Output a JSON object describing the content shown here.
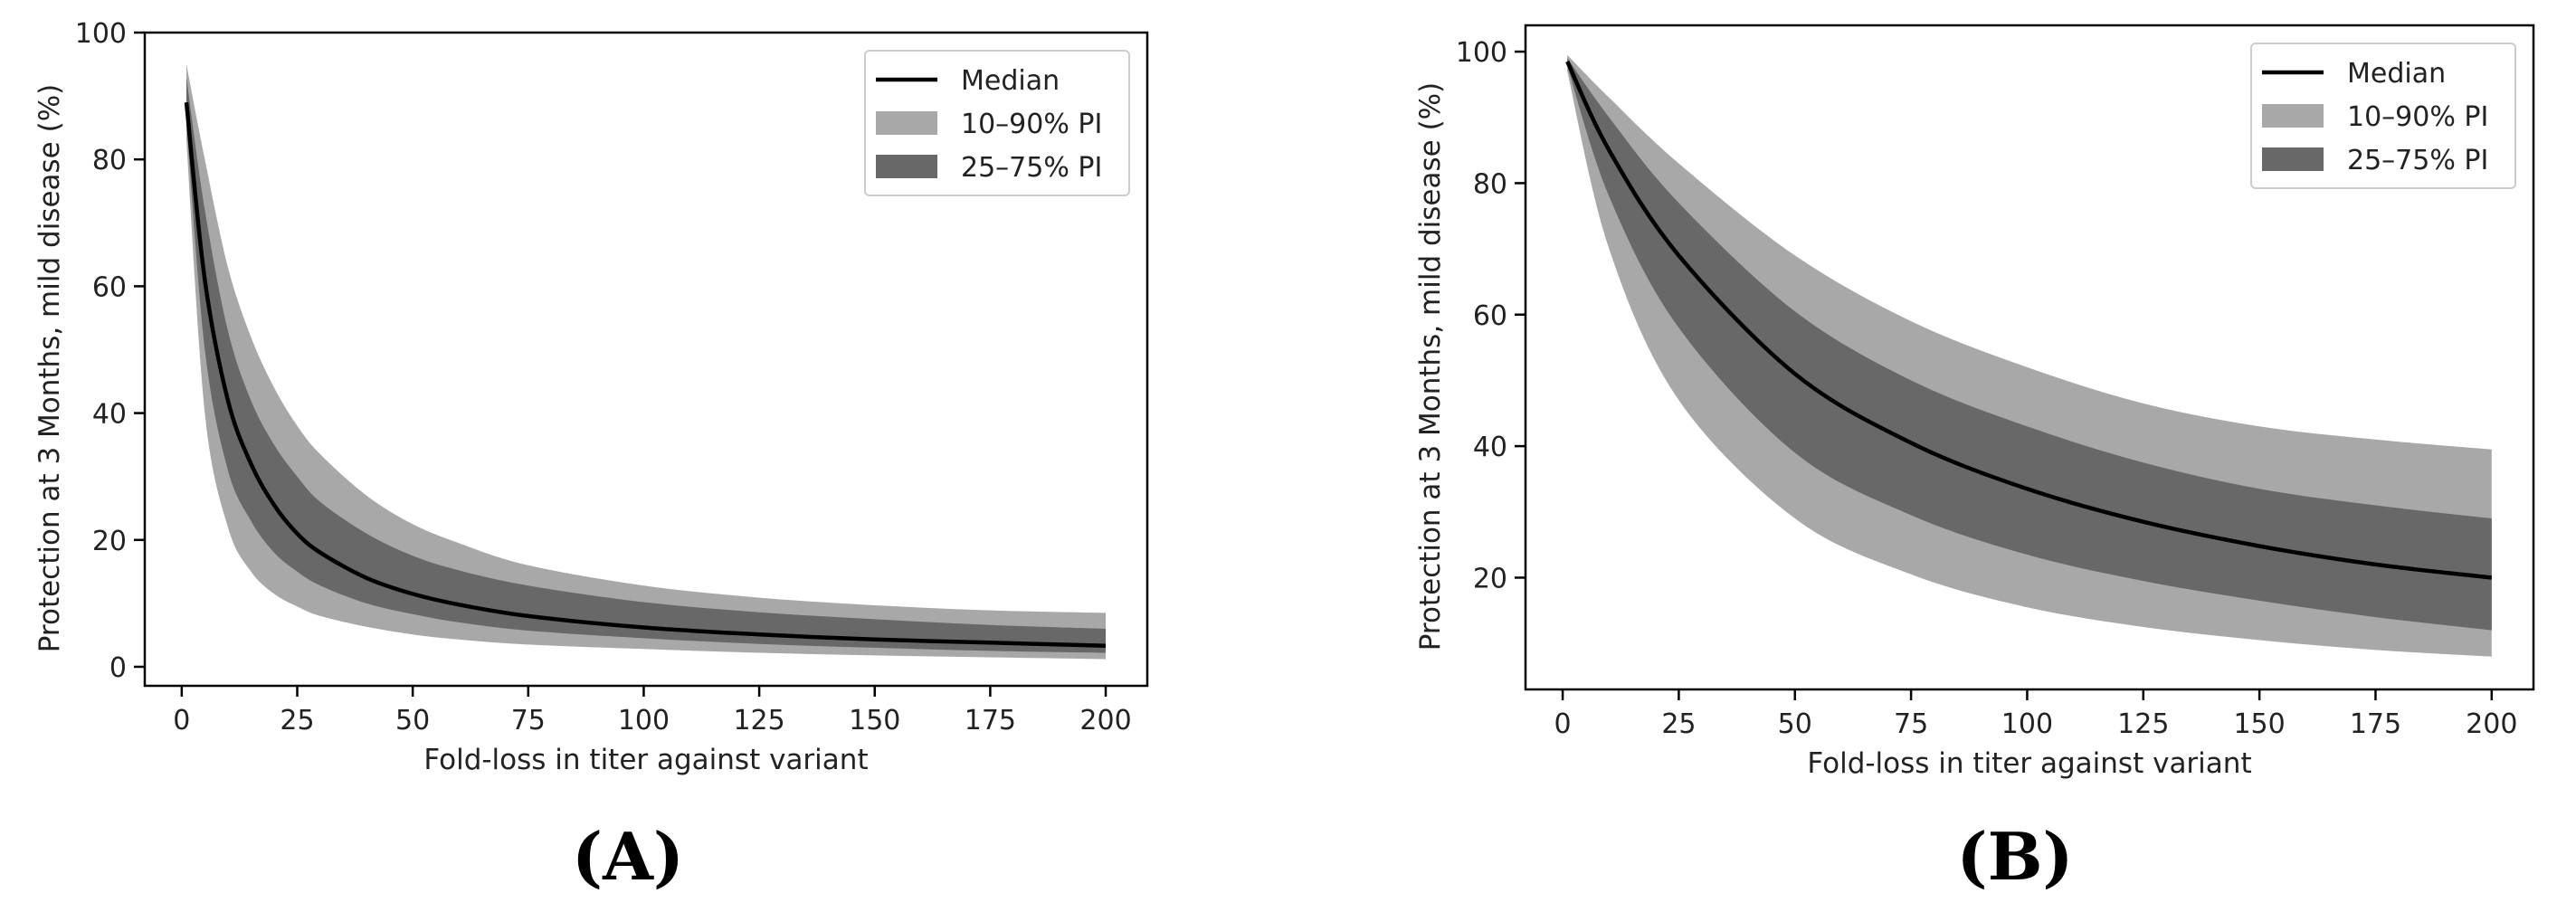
{
  "chart_data": [
    {
      "panel": "(A)",
      "type": "line",
      "xlabel": "Fold-loss in titer against variant",
      "ylabel": "Protection at 3 Months, mild disease (%)",
      "xlim": [
        -8,
        209
      ],
      "ylim": [
        -3,
        100
      ],
      "xticks": [
        0,
        25,
        50,
        75,
        100,
        125,
        150,
        175,
        200
      ],
      "yticks": [
        0,
        20,
        40,
        60,
        80,
        100
      ],
      "legend": {
        "position": "top-right",
        "entries": [
          "Median",
          "10–90% PI",
          "25–75% PI"
        ]
      },
      "colors": {
        "median": "#000000",
        "pi_10_90": "#a8a8a8",
        "pi_25_75": "#686868"
      },
      "x": [
        1,
        5,
        10,
        15,
        20,
        25,
        30,
        40,
        50,
        60,
        75,
        100,
        125,
        150,
        175,
        200
      ],
      "series": [
        {
          "name": "Median",
          "values": [
            89,
            61,
            42,
            32,
            25.5,
            21,
            18,
            14,
            11.5,
            9.8,
            8.0,
            6.2,
            5.1,
            4.3,
            3.8,
            3.3
          ]
        },
        {
          "name": "10–90% PI upper",
          "values": [
            95,
            80,
            63,
            52,
            44,
            38,
            33.5,
            27,
            22.5,
            19.5,
            16,
            12.8,
            10.9,
            9.7,
            8.9,
            8.5
          ]
        },
        {
          "name": "10–90% PI lower",
          "values": [
            83,
            40,
            22,
            15,
            11.5,
            9.5,
            8,
            6.3,
            5.1,
            4.3,
            3.5,
            2.8,
            2.2,
            1.8,
            1.5,
            1.2
          ]
        },
        {
          "name": "25–75% PI upper",
          "values": [
            93,
            72,
            53,
            42,
            35,
            30,
            26,
            21,
            17.5,
            15.2,
            12.8,
            10.2,
            8.6,
            7.5,
            6.6,
            6.0
          ]
        },
        {
          "name": "25–75% PI lower",
          "values": [
            86,
            50,
            31,
            23,
            18,
            15,
            12.8,
            10,
            8.3,
            7.0,
            5.7,
            4.5,
            3.6,
            3.0,
            2.5,
            2.2
          ]
        }
      ]
    },
    {
      "panel": "(B)",
      "type": "line",
      "xlabel": "Fold-loss in titer against variant",
      "ylabel": "Protection at 3 Months, mild disease (%)",
      "xlim": [
        -8,
        209
      ],
      "ylim": [
        3,
        104
      ],
      "xticks": [
        0,
        25,
        50,
        75,
        100,
        125,
        150,
        175,
        200
      ],
      "yticks": [
        20,
        40,
        60,
        80,
        100
      ],
      "legend": {
        "position": "top-right",
        "entries": [
          "Median",
          "10–90% PI",
          "25–75% PI"
        ]
      },
      "colors": {
        "median": "#000000",
        "pi_10_90": "#a8a8a8",
        "pi_25_75": "#686868"
      },
      "x": [
        1,
        10,
        25,
        50,
        75,
        100,
        125,
        150,
        175,
        200
      ],
      "series": [
        {
          "name": "Median",
          "values": [
            98.5,
            85,
            69,
            51,
            40.5,
            33.5,
            28.5,
            24.8,
            22,
            20
          ]
        },
        {
          "name": "10–90% PI upper",
          "values": [
            99.5,
            93,
            83,
            69,
            59,
            52,
            46.5,
            43,
            41,
            39.5
          ]
        },
        {
          "name": "10–90% PI lower",
          "values": [
            97,
            70,
            47,
            29,
            20.5,
            15.5,
            12.5,
            10.5,
            9,
            8
          ]
        },
        {
          "name": "25–75% PI upper",
          "values": [
            99,
            90,
            77,
            60.5,
            50,
            43,
            37.5,
            33.5,
            31,
            29
          ]
        },
        {
          "name": "25–75% PI lower",
          "values": [
            97.8,
            78,
            58,
            39,
            29.5,
            23.5,
            19.5,
            16.5,
            14,
            12
          ]
        }
      ]
    }
  ]
}
